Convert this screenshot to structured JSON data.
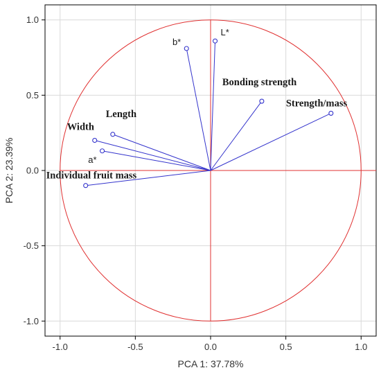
{
  "chart_data": {
    "type": "scatter",
    "subtype": "pca-correlation-circle",
    "xlabel": "PCA 1: 37.78%",
    "ylabel": "PCA 2: 23.39%",
    "xlim": [
      -1.1,
      1.1
    ],
    "ylim": [
      -1.1,
      1.1
    ],
    "xticks": [
      "-1.0",
      "-0.5",
      "0.0",
      "0.5",
      "1.0"
    ],
    "yticks": [
      "-1.0",
      "-0.5",
      "0.0",
      "0.5",
      "1.0"
    ],
    "grid": true,
    "circle_radius": 1.0,
    "colors": {
      "vector": "#3333cc",
      "circle": "#e03030",
      "axis": "#e03030",
      "grid": "#d9d9d9"
    },
    "variables": [
      {
        "name": "L*",
        "x": 0.03,
        "y": 0.86,
        "style": "plain"
      },
      {
        "name": "b*",
        "x": -0.16,
        "y": 0.81,
        "style": "plain"
      },
      {
        "name": "Bonding strength",
        "x": 0.34,
        "y": 0.46,
        "style": "bold"
      },
      {
        "name": "Strength/mass",
        "x": 0.8,
        "y": 0.38,
        "style": "bold"
      },
      {
        "name": "Length",
        "x": -0.65,
        "y": 0.24,
        "style": "bold"
      },
      {
        "name": "Width",
        "x": -0.77,
        "y": 0.2,
        "style": "bold"
      },
      {
        "name": "a*",
        "x": -0.72,
        "y": 0.13,
        "style": "plain"
      },
      {
        "name": "Individual fruit mass",
        "x": -0.83,
        "y": -0.1,
        "style": "bold"
      }
    ]
  }
}
